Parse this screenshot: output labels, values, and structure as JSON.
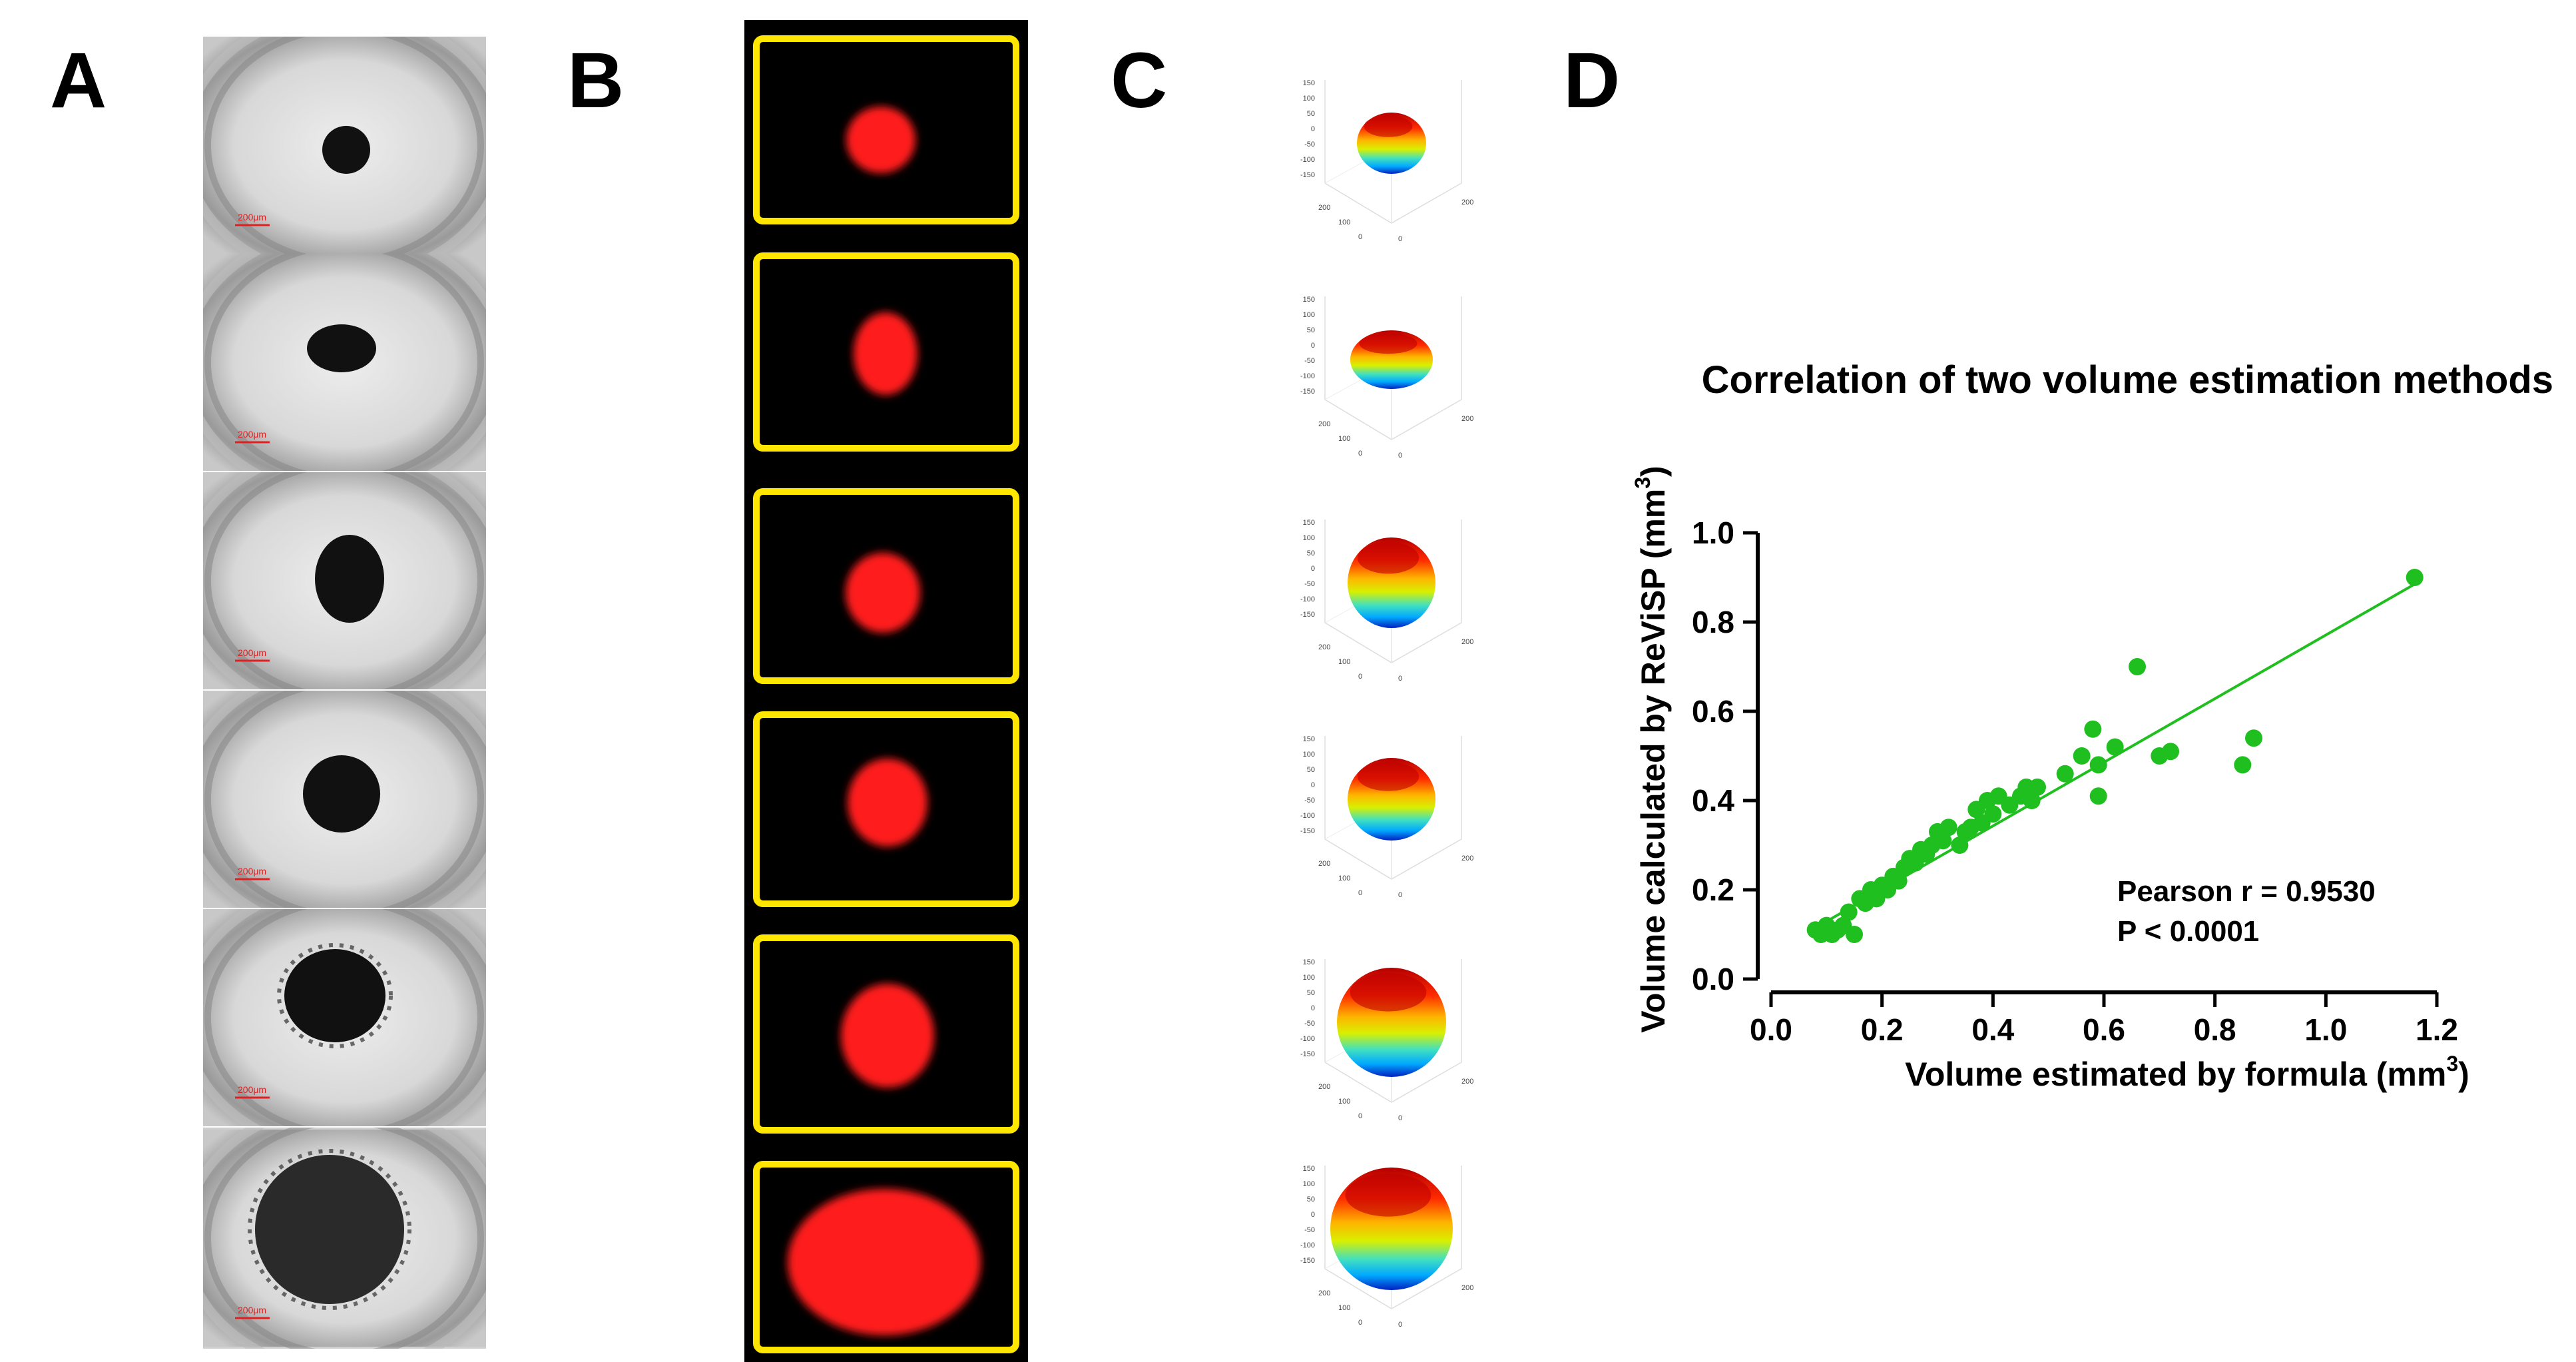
{
  "panels": {
    "a": {
      "letter": "A"
    },
    "b": {
      "letter": "B"
    },
    "c": {
      "letter": "C"
    },
    "d": {
      "letter": "D"
    }
  },
  "brightfield": {
    "scale_bar_label": "200μm",
    "scale_bar_color": "#e02020"
  },
  "fluorescence": {
    "border_color": "#ffe600",
    "spheroid_color": "#ff1a1a"
  },
  "surface_plots": {
    "axis_ticks_z": [
      "150",
      "100",
      "50",
      "0",
      "-50",
      "-100",
      "-150"
    ],
    "axis_ticks_x": [
      "200",
      "100",
      "0"
    ],
    "axis_ticks_y": [
      "0",
      "200"
    ]
  },
  "chart_data": {
    "type": "scatter",
    "title": "Correlation of two volume estimation methods",
    "xlabel": "Volume estimated by formula (mm",
    "xlabel_sup": "3",
    "xlabel_end": ")",
    "ylabel": "Volume calculated by ReViSP (mm",
    "ylabel_sup": "3",
    "ylabel_end": ")",
    "xlim": [
      0.0,
      1.2
    ],
    "ylim": [
      0.0,
      1.0
    ],
    "xticks": [
      "0.0",
      "0.2",
      "0.4",
      "0.6",
      "0.8",
      "1.0",
      "1.2"
    ],
    "yticks": [
      "0.0",
      "0.2",
      "0.4",
      "0.6",
      "0.8",
      "1.0"
    ],
    "point_color": "#1fbf1f",
    "line_color": "#1fbf1f",
    "fit_line": {
      "x": [
        0.08,
        1.16
      ],
      "y": [
        0.115,
        0.885
      ]
    },
    "annotation": [
      "Pearson r = 0.9530",
      "P < 0.0001"
    ],
    "points": [
      [
        0.08,
        0.11
      ],
      [
        0.09,
        0.1
      ],
      [
        0.1,
        0.12
      ],
      [
        0.11,
        0.1
      ],
      [
        0.12,
        0.11
      ],
      [
        0.13,
        0.12
      ],
      [
        0.14,
        0.15
      ],
      [
        0.15,
        0.1
      ],
      [
        0.16,
        0.18
      ],
      [
        0.17,
        0.17
      ],
      [
        0.18,
        0.2
      ],
      [
        0.19,
        0.18
      ],
      [
        0.2,
        0.21
      ],
      [
        0.21,
        0.2
      ],
      [
        0.22,
        0.23
      ],
      [
        0.23,
        0.22
      ],
      [
        0.24,
        0.25
      ],
      [
        0.25,
        0.27
      ],
      [
        0.26,
        0.26
      ],
      [
        0.27,
        0.29
      ],
      [
        0.28,
        0.28
      ],
      [
        0.29,
        0.3
      ],
      [
        0.3,
        0.33
      ],
      [
        0.31,
        0.31
      ],
      [
        0.32,
        0.34
      ],
      [
        0.34,
        0.3
      ],
      [
        0.35,
        0.33
      ],
      [
        0.36,
        0.34
      ],
      [
        0.37,
        0.38
      ],
      [
        0.38,
        0.35
      ],
      [
        0.39,
        0.4
      ],
      [
        0.4,
        0.37
      ],
      [
        0.41,
        0.41
      ],
      [
        0.43,
        0.39
      ],
      [
        0.45,
        0.41
      ],
      [
        0.46,
        0.43
      ],
      [
        0.47,
        0.4
      ],
      [
        0.48,
        0.43
      ],
      [
        0.53,
        0.46
      ],
      [
        0.56,
        0.5
      ],
      [
        0.58,
        0.56
      ],
      [
        0.59,
        0.41
      ],
      [
        0.59,
        0.48
      ],
      [
        0.62,
        0.52
      ],
      [
        0.66,
        0.7
      ],
      [
        0.7,
        0.5
      ],
      [
        0.72,
        0.51
      ],
      [
        0.85,
        0.48
      ],
      [
        0.87,
        0.54
      ],
      [
        1.16,
        0.9
      ]
    ]
  }
}
